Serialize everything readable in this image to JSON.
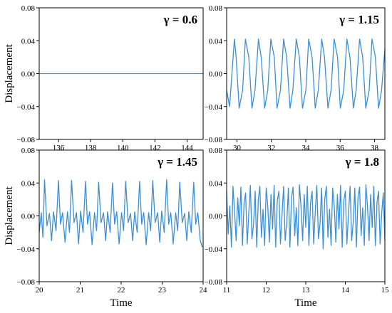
{
  "chart_data": [
    {
      "type": "line",
      "annotation": "γ = 0.6",
      "xlabel": "",
      "ylabel": "Displacement",
      "xlim": [
        134.8,
        145.0
      ],
      "ylim": [
        -0.08,
        0.08
      ],
      "xticks": [
        136,
        138,
        140,
        142,
        144
      ],
      "yticks": [
        -0.08,
        -0.04,
        0.0,
        0.04,
        0.08
      ],
      "color": "#3a8fd8",
      "series": [
        {
          "x": [
            134.8,
            145.0
          ],
          "y": [
            0.0,
            0.0
          ]
        }
      ]
    },
    {
      "type": "line",
      "annotation": "γ = 1.15",
      "xlabel": "",
      "ylabel": "",
      "xlim": [
        29.4,
        38.6
      ],
      "ylim": [
        -0.08,
        0.08
      ],
      "xticks": [
        30,
        32,
        34,
        36,
        38
      ],
      "yticks": [
        -0.08,
        -0.04,
        0.0,
        0.04,
        0.08
      ],
      "color": "#3a8fd8",
      "series": [
        {
          "x": [
            29.4,
            29.57,
            29.85,
            29.95,
            30.13,
            30.33,
            30.49,
            30.69,
            30.87,
            31.05,
            31.25,
            31.41,
            31.61,
            31.79,
            31.97,
            32.17,
            32.33,
            32.53,
            32.71,
            32.89,
            33.09,
            33.25,
            33.45,
            33.63,
            33.81,
            34.01,
            34.17,
            34.37,
            34.55,
            34.73,
            34.93,
            35.09,
            35.29,
            35.47,
            35.65,
            35.85,
            36.01,
            36.21,
            36.39,
            36.57,
            36.77,
            36.93,
            37.13,
            37.31,
            37.49,
            37.69,
            37.85,
            38.05,
            38.23,
            38.41,
            38.6
          ],
          "y": [
            -0.02,
            -0.04,
            0.042,
            0.02,
            -0.042,
            -0.02,
            0.042,
            0.02,
            -0.042,
            -0.02,
            0.042,
            0.02,
            -0.042,
            -0.02,
            0.042,
            0.02,
            -0.042,
            -0.02,
            0.042,
            0.02,
            -0.042,
            -0.02,
            0.042,
            0.02,
            -0.042,
            -0.02,
            0.042,
            0.02,
            -0.042,
            -0.02,
            0.042,
            0.02,
            -0.042,
            -0.02,
            0.042,
            0.02,
            -0.042,
            -0.02,
            0.042,
            0.02,
            -0.042,
            -0.02,
            0.042,
            0.02,
            -0.042,
            -0.02,
            0.042,
            0.02,
            -0.042,
            -0.02,
            0.03
          ]
        }
      ]
    },
    {
      "type": "line",
      "annotation": "γ = 1.45",
      "xlabel": "Time",
      "ylabel": "Displacement",
      "xlim": [
        20,
        24
      ],
      "ylim": [
        -0.08,
        0.08
      ],
      "xticks": [
        20,
        21,
        22,
        23,
        24
      ],
      "yticks": [
        -0.08,
        -0.04,
        0.0,
        0.04,
        0.08
      ],
      "color": "#3a8fd8",
      "series": [
        {
          "x": [
            20.0,
            20.05,
            20.09,
            20.13,
            20.19,
            20.25,
            20.3,
            20.35,
            20.41,
            20.47,
            20.52,
            20.57,
            20.63,
            20.69,
            20.74,
            20.79,
            20.85,
            20.91,
            20.96,
            21.01,
            21.07,
            21.13,
            21.18,
            21.23,
            21.29,
            21.35,
            21.4,
            21.45,
            21.51,
            21.57,
            21.62,
            21.67,
            21.73,
            21.79,
            21.84,
            21.89,
            21.95,
            22.01,
            22.06,
            22.11,
            22.17,
            22.23,
            22.28,
            22.33,
            22.39,
            22.45,
            22.5,
            22.55,
            22.61,
            22.67,
            22.72,
            22.77,
            22.83,
            22.89,
            22.94,
            22.99,
            23.05,
            23.11,
            23.16,
            23.21,
            23.27,
            23.33,
            23.38,
            23.43,
            23.49,
            23.55,
            23.6,
            23.65,
            23.71,
            23.77,
            23.82,
            23.87,
            23.93,
            23.98
          ],
          "y": [
            -0.02,
            0.004,
            -0.026,
            0.044,
            -0.012,
            0.003,
            -0.03,
            0.005,
            -0.018,
            0.043,
            -0.01,
            0.004,
            -0.032,
            0.005,
            -0.02,
            0.043,
            -0.008,
            0.004,
            -0.034,
            0.006,
            -0.02,
            0.042,
            -0.01,
            0.005,
            -0.035,
            0.004,
            -0.018,
            0.041,
            -0.008,
            0.004,
            -0.03,
            0.005,
            -0.02,
            0.04,
            -0.01,
            0.005,
            -0.034,
            0.004,
            -0.018,
            0.042,
            -0.008,
            0.003,
            -0.03,
            0.005,
            -0.02,
            0.042,
            -0.01,
            0.004,
            -0.035,
            0.004,
            -0.018,
            0.043,
            -0.008,
            0.004,
            -0.032,
            0.006,
            -0.02,
            0.044,
            -0.01,
            0.004,
            -0.034,
            0.004,
            -0.018,
            0.041,
            -0.008,
            0.003,
            -0.03,
            0.005,
            -0.02,
            0.041,
            -0.01,
            0.004,
            -0.03,
            -0.038
          ]
        }
      ]
    },
    {
      "type": "line",
      "annotation": "γ = 1.8",
      "xlabel": "Time",
      "ylabel": "",
      "xlim": [
        11,
        15
      ],
      "ylim": [
        -0.08,
        0.08
      ],
      "xticks": [
        11,
        12,
        13,
        14,
        15
      ],
      "yticks": [
        -0.08,
        -0.04,
        0.0,
        0.04,
        0.08
      ],
      "color": "#3a8fd8",
      "series": [
        {
          "x": [
            11.0,
            11.04,
            11.08,
            11.12,
            11.16,
            11.2,
            11.24,
            11.28,
            11.32,
            11.36,
            11.4,
            11.44,
            11.48,
            11.52,
            11.56,
            11.6,
            11.64,
            11.68,
            11.72,
            11.76,
            11.8,
            11.84,
            11.88,
            11.92,
            11.96,
            12.0,
            12.04,
            12.08,
            12.12,
            12.16,
            12.2,
            12.24,
            12.28,
            12.32,
            12.36,
            12.4,
            12.44,
            12.48,
            12.52,
            12.56,
            12.6,
            12.64,
            12.68,
            12.72,
            12.76,
            12.8,
            12.84,
            12.88,
            12.92,
            12.96,
            13.0,
            13.04,
            13.08,
            13.12,
            13.16,
            13.2,
            13.24,
            13.28,
            13.32,
            13.36,
            13.4,
            13.44,
            13.48,
            13.52,
            13.56,
            13.6,
            13.64,
            13.68,
            13.72,
            13.76,
            13.8,
            13.84,
            13.88,
            13.92,
            13.96,
            14.0,
            14.04,
            14.08,
            14.12,
            14.16,
            14.2,
            14.24,
            14.28,
            14.32,
            14.36,
            14.4,
            14.44,
            14.48,
            14.52,
            14.56,
            14.6,
            14.64,
            14.68,
            14.72,
            14.76,
            14.8,
            14.84,
            14.88,
            14.92,
            14.96,
            15.0
          ],
          "y": [
            0.03,
            -0.022,
            0.012,
            -0.038,
            0.036,
            0.005,
            -0.03,
            0.022,
            -0.012,
            0.035,
            -0.036,
            0.015,
            0.028,
            -0.034,
            0.004,
            0.037,
            -0.028,
            -0.01,
            0.03,
            -0.038,
            0.02,
            0.036,
            -0.026,
            0.008,
            -0.036,
            0.034,
            0.012,
            -0.032,
            0.026,
            -0.016,
            0.037,
            -0.038,
            0.018,
            0.03,
            -0.034,
            0.002,
            0.036,
            -0.03,
            -0.008,
            0.034,
            -0.038,
            0.022,
            0.035,
            -0.024,
            0.01,
            -0.036,
            0.038,
            0.012,
            -0.03,
            0.026,
            -0.014,
            0.036,
            -0.036,
            0.016,
            0.03,
            -0.034,
            0.004,
            0.037,
            -0.028,
            -0.01,
            0.034,
            -0.04,
            0.02,
            0.036,
            -0.026,
            0.008,
            -0.036,
            0.034,
            0.012,
            -0.032,
            0.026,
            -0.016,
            0.037,
            -0.038,
            0.018,
            0.03,
            -0.034,
            0.002,
            0.036,
            -0.03,
            -0.008,
            0.034,
            -0.038,
            0.022,
            0.035,
            -0.024,
            0.01,
            -0.036,
            0.038,
            0.012,
            -0.03,
            0.026,
            -0.014,
            0.036,
            -0.036,
            0.016,
            0.03,
            -0.034,
            0.004,
            0.028,
            -0.03
          ]
        }
      ]
    }
  ]
}
